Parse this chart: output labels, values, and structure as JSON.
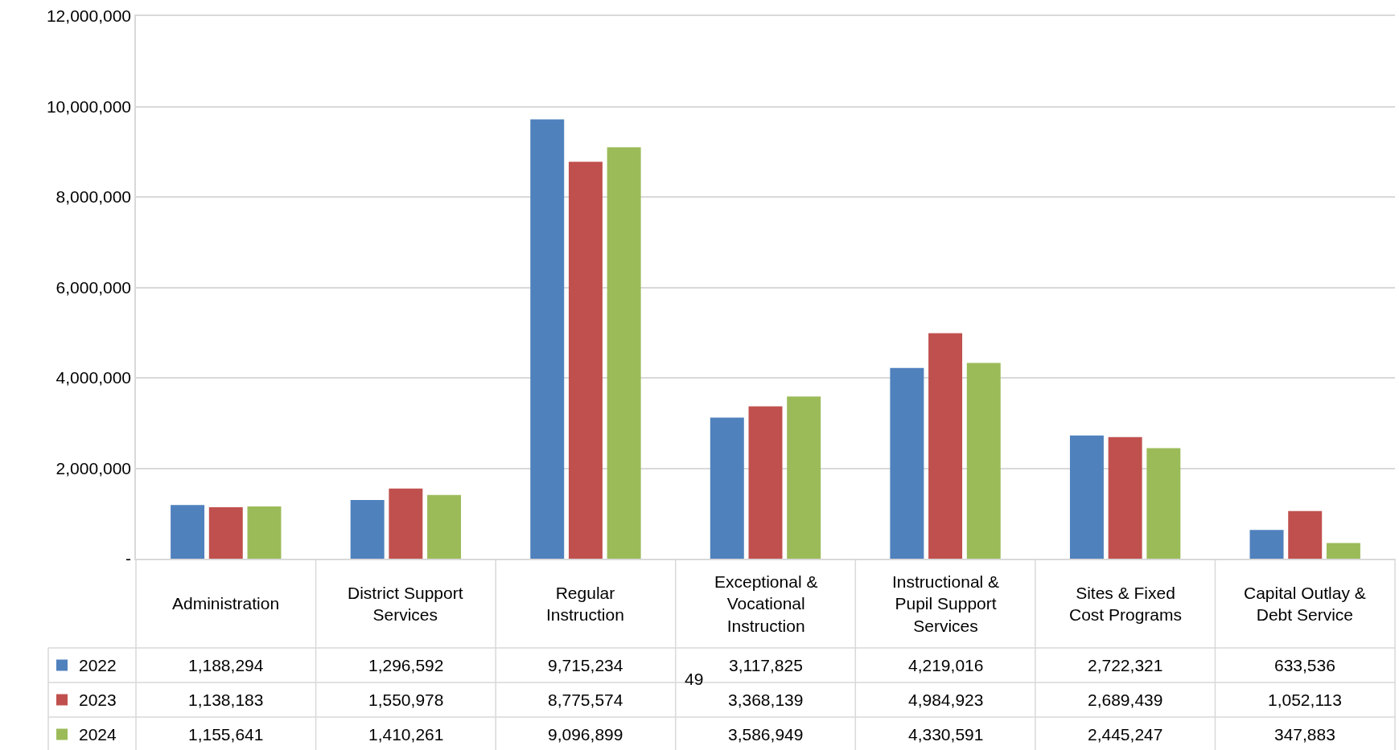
{
  "chart_data": {
    "type": "bar",
    "categories": [
      "Administration",
      "District Support Services",
      "Regular Instruction",
      "Exceptional & Vocational Instruction",
      "Instructional & Pupil Support Services",
      "Sites & Fixed Cost Programs",
      "Capital Outlay & Debt Service"
    ],
    "series": [
      {
        "name": "2022",
        "color": "#4f81bd",
        "values": [
          1188294,
          1296592,
          9715234,
          3117825,
          4219016,
          2722321,
          633536
        ],
        "value_labels": [
          "1,188,294",
          "1,296,592",
          "9,715,234",
          "3,117,825",
          "4,219,016",
          "2,722,321",
          "633,536"
        ]
      },
      {
        "name": "2023",
        "color": "#c0504d",
        "values": [
          1138183,
          1550978,
          8775574,
          3368139,
          4984923,
          2689439,
          1052113
        ],
        "value_labels": [
          "1,138,183",
          "1,550,978",
          "8,775,574",
          "3,368,139",
          "4,984,923",
          "2,689,439",
          "1,052,113"
        ]
      },
      {
        "name": "2024",
        "color": "#9bbb59",
        "values": [
          1155641,
          1410261,
          9096899,
          3586949,
          4330591,
          2445247,
          347883
        ],
        "value_labels": [
          "1,155,641",
          "1,410,261",
          "9,096,899",
          "3,586,949",
          "4,330,591",
          "2,445,247",
          "347,883"
        ]
      }
    ],
    "ylim": [
      0,
      12000000
    ],
    "yticks": [
      {
        "value": 0,
        "label": "-"
      },
      {
        "value": 2000000,
        "label": "2,000,000"
      },
      {
        "value": 4000000,
        "label": "4,000,000"
      },
      {
        "value": 6000000,
        "label": "6,000,000"
      },
      {
        "value": 8000000,
        "label": "8,000,000"
      },
      {
        "value": 10000000,
        "label": "10,000,000"
      },
      {
        "value": 12000000,
        "label": "12,000,000"
      }
    ],
    "grid": "y",
    "legend": "bottom left",
    "annotations": [
      "49"
    ]
  }
}
